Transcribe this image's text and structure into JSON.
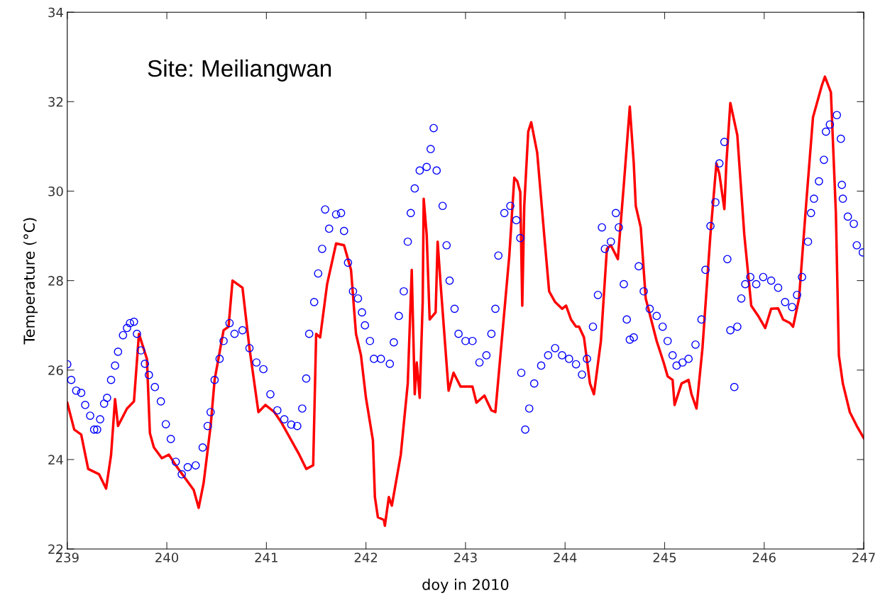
{
  "chart_data": {
    "type": "line",
    "xlabel": "doy in 2010",
    "ylabel": "Temperature (°C)",
    "annotations": [
      "Site: Meiliangwan"
    ],
    "xlim": [
      239,
      247
    ],
    "xticks": [
      239,
      240,
      241,
      242,
      243,
      244,
      245,
      246,
      247
    ],
    "ylim": [
      22,
      34
    ],
    "yticks": [
      22,
      24,
      26,
      28,
      30,
      32,
      34
    ],
    "grid": false,
    "series": [
      {
        "color": "#ff0000",
        "marker": "none",
        "line_style": "solid",
        "x": [
          239.0,
          239.07,
          239.14,
          239.21,
          239.32,
          239.39,
          239.44,
          239.48,
          239.51,
          239.6,
          239.67,
          239.72,
          239.8,
          239.83,
          239.87,
          239.95,
          240.02,
          240.09,
          240.27,
          240.32,
          240.37,
          240.44,
          240.48,
          240.57,
          240.62,
          240.66,
          240.76,
          240.83,
          240.92,
          240.99,
          241.08,
          241.15,
          241.33,
          241.4,
          241.47,
          241.5,
          241.54,
          241.61,
          241.7,
          241.78,
          241.85,
          241.9,
          241.95,
          242.0,
          242.07,
          242.09,
          242.12,
          242.18,
          242.19,
          242.23,
          242.26,
          242.35,
          242.42,
          242.46,
          242.49,
          242.51,
          242.54,
          242.57,
          242.58,
          242.61,
          242.64,
          242.7,
          242.72,
          242.75,
          242.83,
          242.88,
          242.95,
          243.07,
          243.11,
          243.19,
          243.26,
          243.3,
          243.37,
          243.44,
          243.49,
          243.52,
          243.55,
          243.57,
          243.59,
          243.63,
          243.66,
          243.72,
          243.79,
          243.84,
          243.9,
          243.97,
          244.01,
          244.06,
          244.11,
          244.14,
          244.19,
          244.25,
          244.29,
          244.36,
          244.42,
          244.46,
          244.53,
          244.59,
          244.65,
          244.69,
          244.71,
          244.76,
          244.81,
          244.92,
          244.99,
          245.03,
          245.08,
          245.1,
          245.17,
          245.24,
          245.27,
          245.32,
          245.38,
          245.46,
          245.52,
          245.55,
          245.6,
          245.62,
          245.66,
          245.73,
          245.8,
          245.87,
          245.94,
          246.01,
          246.07,
          246.14,
          246.19,
          246.26,
          246.29,
          246.35,
          246.42,
          246.49,
          246.58,
          246.61,
          246.67,
          246.72,
          246.75,
          246.79,
          246.86,
          246.93,
          247.0
        ],
        "values": [
          25.27,
          24.67,
          24.56,
          23.79,
          23.67,
          23.35,
          24.1,
          25.35,
          24.75,
          25.14,
          25.3,
          26.81,
          26.25,
          24.59,
          24.27,
          24.03,
          24.11,
          23.87,
          23.32,
          22.92,
          23.48,
          24.75,
          25.78,
          26.89,
          26.97,
          28.0,
          27.84,
          26.49,
          25.06,
          25.22,
          25.06,
          24.83,
          24.11,
          23.79,
          23.87,
          26.81,
          26.73,
          27.92,
          28.83,
          28.79,
          28.24,
          26.81,
          26.33,
          25.38,
          24.43,
          23.16,
          22.71,
          22.65,
          22.52,
          23.16,
          22.97,
          24.11,
          25.7,
          28.24,
          25.46,
          26.17,
          25.38,
          27.52,
          29.83,
          29.03,
          27.13,
          27.29,
          28.87,
          27.92,
          25.54,
          25.94,
          25.63,
          25.63,
          25.27,
          25.43,
          25.1,
          25.06,
          26.81,
          28.56,
          30.3,
          30.22,
          29.98,
          27.44,
          29.67,
          31.33,
          31.54,
          30.86,
          29.03,
          27.76,
          27.52,
          27.37,
          27.44,
          27.13,
          26.97,
          26.97,
          26.73,
          25.7,
          25.46,
          26.65,
          28.71,
          28.79,
          28.48,
          30.14,
          31.89,
          30.62,
          29.67,
          29.19,
          27.6,
          26.65,
          26.17,
          25.86,
          25.78,
          25.22,
          25.7,
          25.78,
          25.46,
          25.14,
          26.49,
          29.03,
          30.62,
          30.38,
          29.6,
          30.62,
          31.97,
          31.25,
          29.03,
          27.44,
          27.21,
          26.94,
          27.37,
          27.38,
          27.13,
          27.05,
          26.97,
          27.6,
          29.67,
          31.65,
          32.37,
          32.56,
          32.21,
          29.51,
          26.33,
          25.7,
          25.06,
          24.75,
          24.48
        ]
      },
      {
        "type": "scatter",
        "color": "#0000ff",
        "marker": "circle",
        "x": [
          239.0,
          239.04,
          239.09,
          239.14,
          239.18,
          239.23,
          239.27,
          239.3,
          239.33,
          239.37,
          239.4,
          239.44,
          239.48,
          239.51,
          239.56,
          239.6,
          239.63,
          239.67,
          239.7,
          239.74,
          239.78,
          239.82,
          239.88,
          239.94,
          239.99,
          240.04,
          240.09,
          240.15,
          240.21,
          240.29,
          240.36,
          240.41,
          240.44,
          240.48,
          240.53,
          240.57,
          240.63,
          240.68,
          240.76,
          240.83,
          240.9,
          240.97,
          241.04,
          241.11,
          241.18,
          241.25,
          241.31,
          241.36,
          241.4,
          241.43,
          241.48,
          241.52,
          241.56,
          241.59,
          241.63,
          241.7,
          241.75,
          241.78,
          241.82,
          241.87,
          241.92,
          241.96,
          241.99,
          242.04,
          242.08,
          242.15,
          242.24,
          242.28,
          242.33,
          242.38,
          242.42,
          242.45,
          242.49,
          242.54,
          242.61,
          242.65,
          242.68,
          242.71,
          242.77,
          242.81,
          242.84,
          242.89,
          242.93,
          243.0,
          243.07,
          243.14,
          243.21,
          243.26,
          243.3,
          243.33,
          243.39,
          243.45,
          243.51,
          243.55,
          243.56,
          243.6,
          243.64,
          243.69,
          243.76,
          243.83,
          243.9,
          243.97,
          244.04,
          244.11,
          244.17,
          244.22,
          244.28,
          244.33,
          244.37,
          244.4,
          244.46,
          244.51,
          244.54,
          244.59,
          244.62,
          244.65,
          244.69,
          244.74,
          244.79,
          244.85,
          244.92,
          244.98,
          245.03,
          245.08,
          245.12,
          245.18,
          245.24,
          245.31,
          245.37,
          245.41,
          245.46,
          245.51,
          245.55,
          245.6,
          245.63,
          245.66,
          245.7,
          245.73,
          245.77,
          245.81,
          245.86,
          245.92,
          245.99,
          246.07,
          246.14,
          246.21,
          246.28,
          246.33,
          246.38,
          246.44,
          246.47,
          246.5,
          246.55,
          246.6,
          246.62,
          246.66,
          246.73,
          246.77,
          246.78,
          246.79,
          246.84,
          246.9,
          246.93,
          246.99
        ],
        "values": [
          26.13,
          25.78,
          25.54,
          25.49,
          25.22,
          24.98,
          24.67,
          24.67,
          24.9,
          25.25,
          25.38,
          25.78,
          26.1,
          26.41,
          26.78,
          26.94,
          27.05,
          27.08,
          26.81,
          26.44,
          26.14,
          25.89,
          25.62,
          25.3,
          24.79,
          24.46,
          23.95,
          23.67,
          23.83,
          23.87,
          24.27,
          24.75,
          25.06,
          25.78,
          26.25,
          26.65,
          27.05,
          26.81,
          26.89,
          26.49,
          26.17,
          26.02,
          25.46,
          25.1,
          24.9,
          24.78,
          24.75,
          25.14,
          25.81,
          26.81,
          27.52,
          28.16,
          28.71,
          29.59,
          29.16,
          29.48,
          29.51,
          29.11,
          28.4,
          27.76,
          27.6,
          27.29,
          27.0,
          26.65,
          26.25,
          26.25,
          26.14,
          26.62,
          27.21,
          27.76,
          28.87,
          29.51,
          30.06,
          30.46,
          30.54,
          30.94,
          31.41,
          30.46,
          29.67,
          28.79,
          28.0,
          27.37,
          26.81,
          26.65,
          26.65,
          26.17,
          26.33,
          26.81,
          27.37,
          28.56,
          29.51,
          29.67,
          29.35,
          28.95,
          25.94,
          24.67,
          25.14,
          25.7,
          26.1,
          26.33,
          26.49,
          26.33,
          26.25,
          26.13,
          25.9,
          26.25,
          26.97,
          27.68,
          29.19,
          28.71,
          28.87,
          29.51,
          29.19,
          27.92,
          27.13,
          26.68,
          26.73,
          28.32,
          27.76,
          27.37,
          27.21,
          26.97,
          26.65,
          26.33,
          26.1,
          26.17,
          26.25,
          26.57,
          27.13,
          28.24,
          29.22,
          29.75,
          30.62,
          31.1,
          28.48,
          26.89,
          25.62,
          26.97,
          27.6,
          27.92,
          28.08,
          27.92,
          28.08,
          28.0,
          27.84,
          27.52,
          27.41,
          27.68,
          28.08,
          28.87,
          29.51,
          29.83,
          30.22,
          30.7,
          31.33,
          31.49,
          31.7,
          31.17,
          30.14,
          29.83,
          29.43,
          29.27,
          28.79,
          28.63
        ]
      }
    ]
  }
}
